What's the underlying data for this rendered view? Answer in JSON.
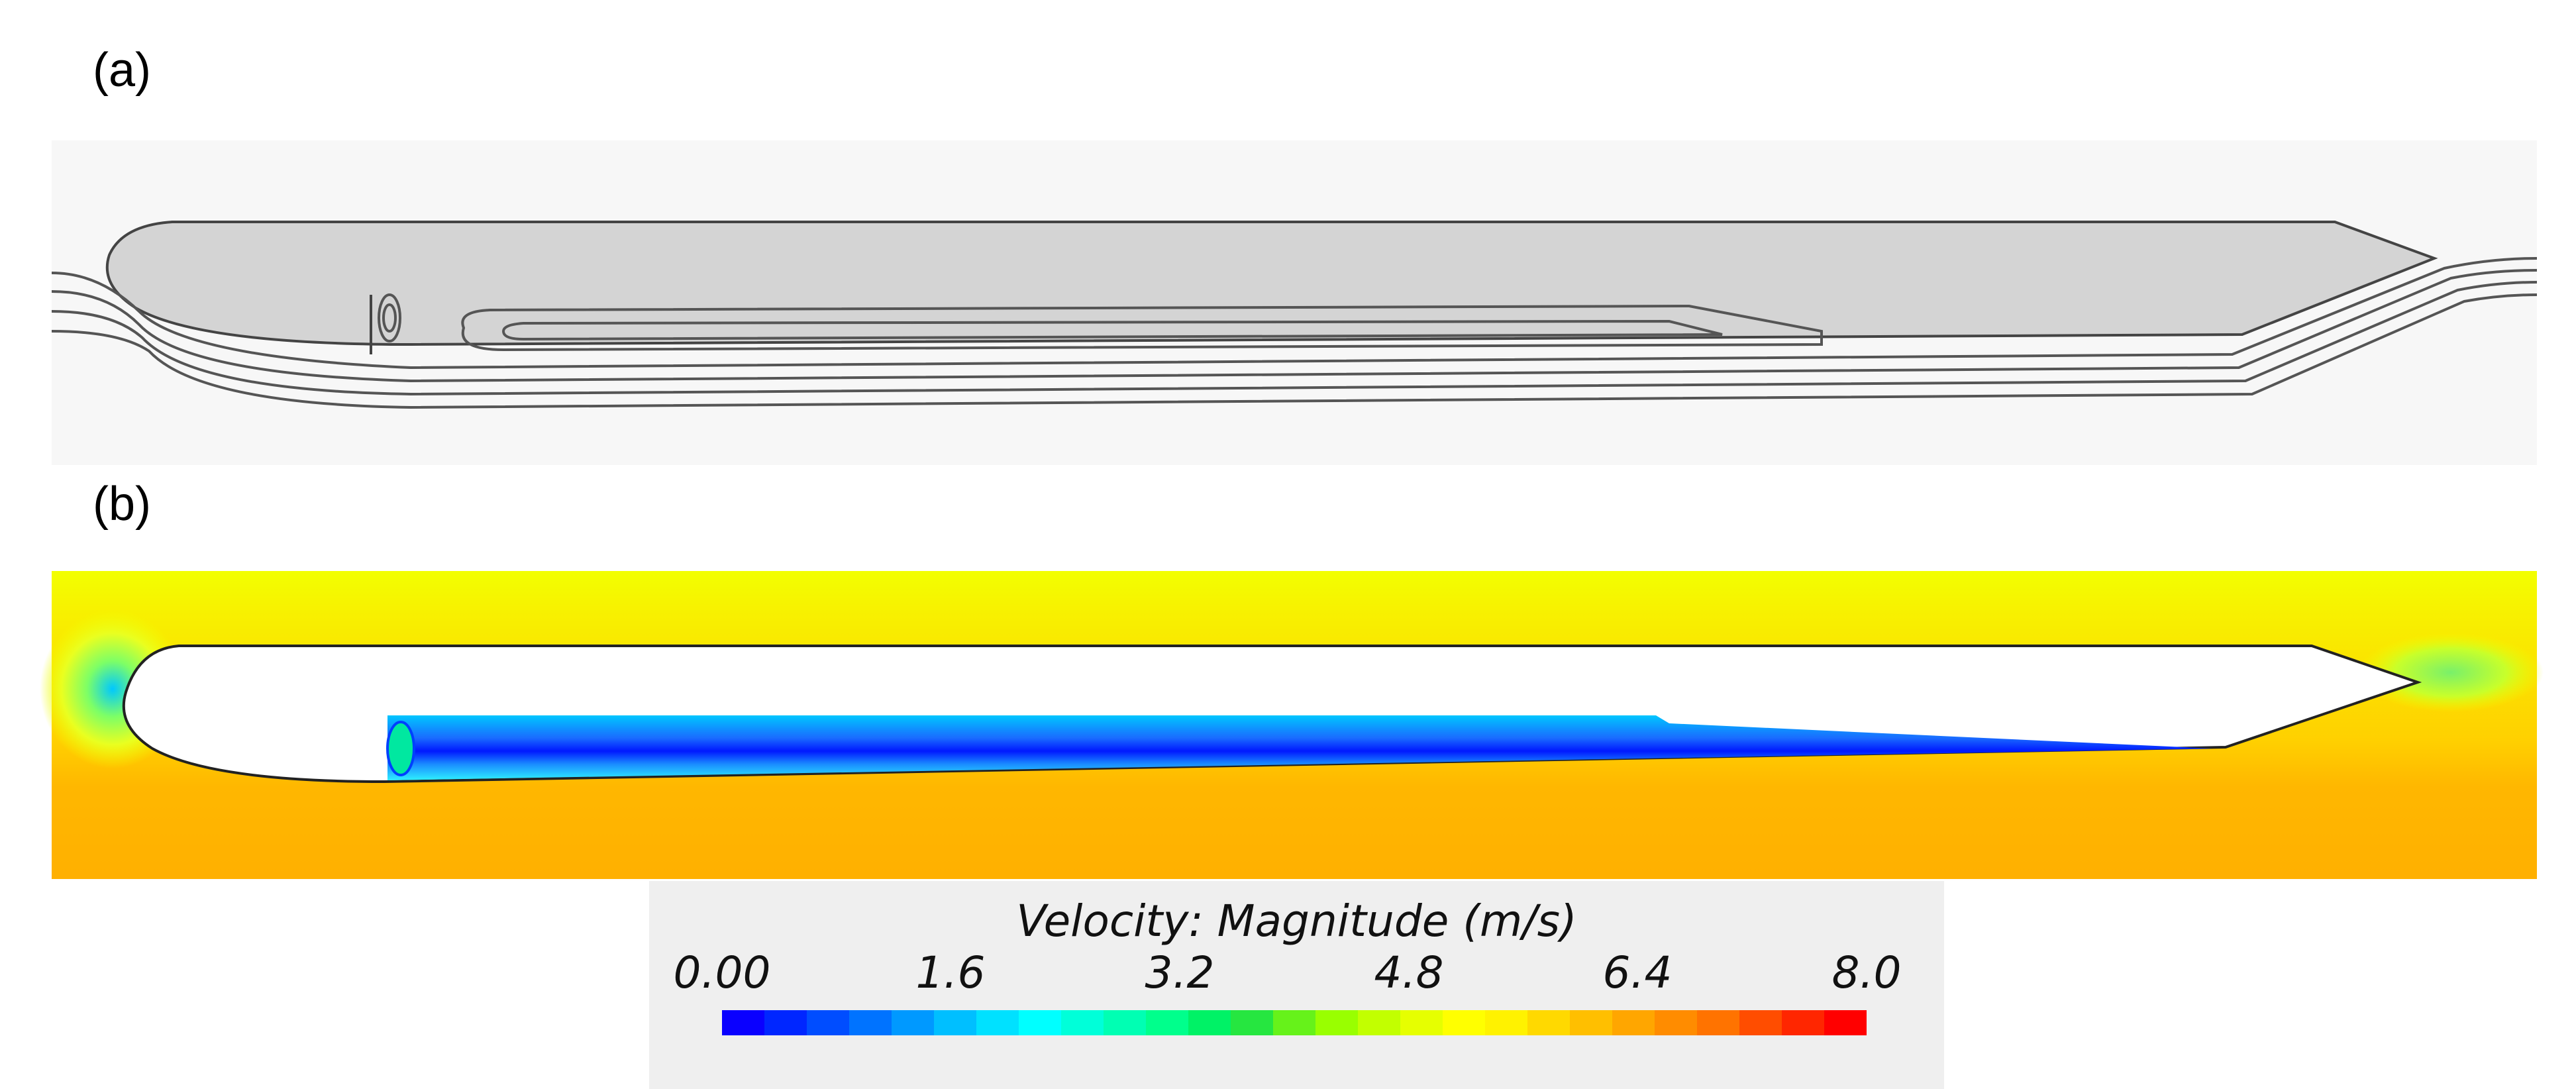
{
  "panel_a": {
    "label": "(a)",
    "content": "streamlines around hull profile"
  },
  "panel_b": {
    "label": "(b)",
    "content": "velocity magnitude contour"
  },
  "colorbar": {
    "title": "Velocity: Magnitude (m/s)",
    "ticks": [
      "0.00",
      "1.6",
      "3.2",
      "4.8",
      "6.4",
      "8.0"
    ],
    "colors": [
      "#0a00ff",
      "#0026ff",
      "#004dff",
      "#0073ff",
      "#0099ff",
      "#00bfff",
      "#00e1ff",
      "#00ffff",
      "#00ffd9",
      "#00ffb3",
      "#00ff8c",
      "#00f266",
      "#26e640",
      "#66f21a",
      "#99ff00",
      "#c2ff00",
      "#e6ff00",
      "#ffff00",
      "#fff200",
      "#ffd900",
      "#ffbf00",
      "#ffa600",
      "#ff8c00",
      "#ff7300",
      "#ff4d00",
      "#ff2600",
      "#ff0000"
    ]
  }
}
